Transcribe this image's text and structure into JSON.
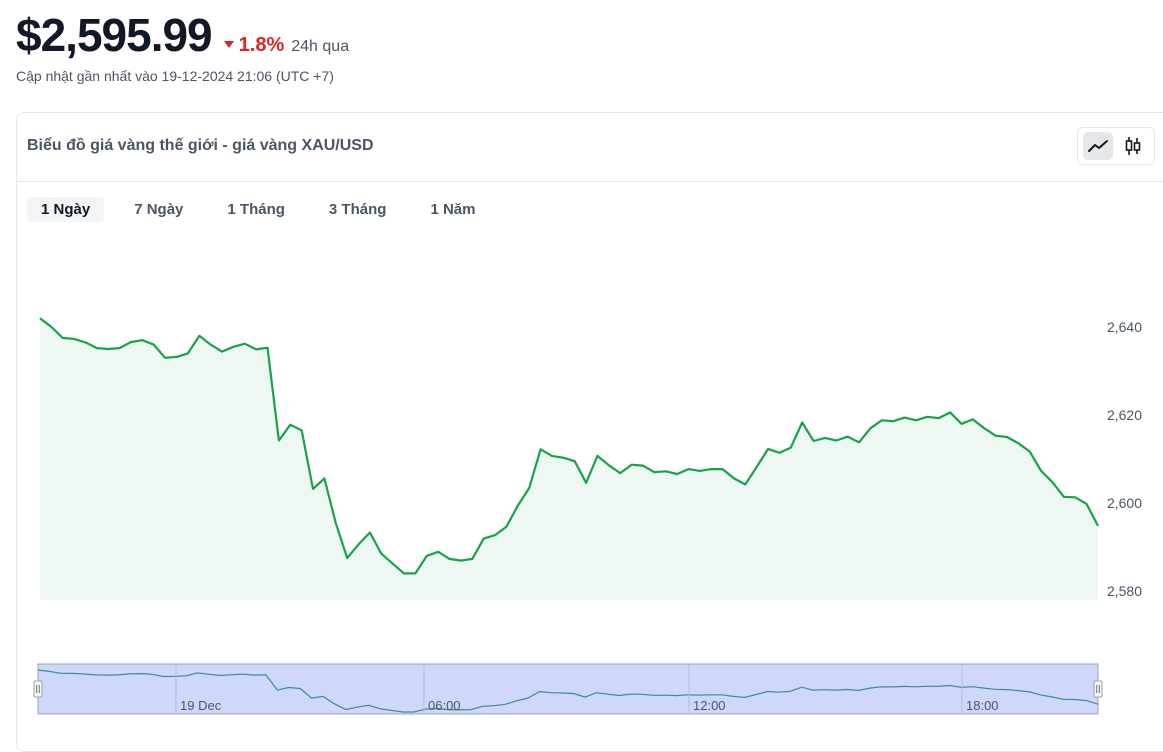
{
  "header": {
    "price": "$2,595.99",
    "change_pct": "1.8%",
    "change_period": "24h qua",
    "updated": "Cập nhật gần nhất vào 19-12-2024 21:06 (UTC +7)"
  },
  "card": {
    "title": "Biểu đồ giá vàng thế giới - giá vàng XAU/USD",
    "chart_types": [
      {
        "name": "line",
        "icon": "line-chart-icon",
        "active": true
      },
      {
        "name": "candlestick",
        "icon": "candlestick-icon",
        "active": false
      }
    ],
    "tabs": [
      {
        "label": "1 Ngày",
        "active": true
      },
      {
        "label": "7 Ngày",
        "active": false
      },
      {
        "label": "1 Tháng",
        "active": false
      },
      {
        "label": "3 Tháng",
        "active": false
      },
      {
        "label": "1 Năm",
        "active": false
      }
    ]
  },
  "colors": {
    "line": "#16a34a",
    "area": "#eef7f1",
    "down": "#dc2626",
    "navigator_fill": "#cfd8fb",
    "navigator_line": "#3b8e8a"
  },
  "chart_data": {
    "type": "area",
    "title": "",
    "xlabel": "",
    "ylabel": "",
    "y_ticks": [
      2580,
      2600,
      2620,
      2640
    ],
    "ylim": [
      2576,
      2660
    ],
    "y_axis_position": "right",
    "grid": false,
    "navigator_labels": [
      "19 Dec",
      "06:00",
      "12:00",
      "18:00"
    ],
    "series": [
      {
        "values": [
          2642,
          2640,
          2637.5,
          2637.3,
          2636.5,
          2635.2,
          2635,
          2635.2,
          2636.6,
          2637,
          2636,
          2633,
          2633.2,
          2634,
          2638,
          2636,
          2634.4,
          2635.5,
          2636.2,
          2634.9,
          2635.3,
          2614.2,
          2617.8,
          2616.5,
          2603.2,
          2605.6,
          2595.4,
          2587.5,
          2590.6,
          2593.3,
          2588.5,
          2586.2,
          2584,
          2584,
          2588,
          2588.9,
          2587.3,
          2586.9,
          2587.3,
          2591.9,
          2592.7,
          2594.6,
          2599.4,
          2603.4,
          2612.2,
          2610.7,
          2610.3,
          2609.5,
          2604.6,
          2610.7,
          2608.6,
          2606.8,
          2608.7,
          2608.5,
          2607,
          2607.2,
          2606.6,
          2607.7,
          2607.3,
          2607.7,
          2607.7,
          2605.6,
          2604.2,
          2608.2,
          2612.3,
          2611.4,
          2612.6,
          2618.3,
          2614.1,
          2614.8,
          2614.2,
          2615.1,
          2613.8,
          2617,
          2618.8,
          2618.6,
          2619.4,
          2618.8,
          2619.6,
          2619.3,
          2620.6,
          2618,
          2619,
          2617,
          2615.3,
          2615,
          2613.6,
          2611.7,
          2607.3,
          2604.7,
          2601.4,
          2601.3,
          2599.8,
          2594.8
        ]
      }
    ]
  }
}
